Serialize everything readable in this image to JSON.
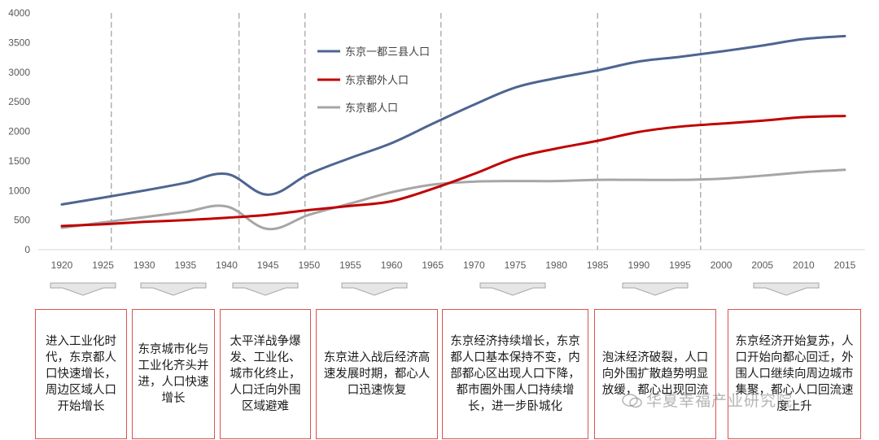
{
  "chart_data": {
    "type": "line",
    "x": [
      1920,
      1925,
      1930,
      1935,
      1940,
      1945,
      1950,
      1955,
      1960,
      1965,
      1970,
      1975,
      1980,
      1985,
      1990,
      1995,
      2000,
      2005,
      2010,
      2015
    ],
    "ylim": [
      0,
      4000
    ],
    "yticks": [
      0,
      500,
      1000,
      1500,
      2000,
      2500,
      3000,
      3500,
      4000
    ],
    "grid": false,
    "legend_position": "top-center",
    "series": [
      {
        "name": "东京一都三县人口",
        "color": "#4e6590",
        "values": [
          765,
          880,
          1000,
          1130,
          1280,
          930,
          1280,
          1550,
          1800,
          2130,
          2450,
          2740,
          2900,
          3030,
          3180,
          3260,
          3350,
          3450,
          3560,
          3610
        ]
      },
      {
        "name": "东京都外人口",
        "color": "#c00000",
        "values": [
          400,
          430,
          470,
          500,
          540,
          590,
          670,
          740,
          820,
          1030,
          1280,
          1550,
          1710,
          1840,
          1990,
          2080,
          2130,
          2180,
          2240,
          2260
        ]
      },
      {
        "name": "东京都人口",
        "color": "#a6a6a6",
        "values": [
          370,
          460,
          550,
          640,
          730,
          350,
          590,
          780,
          970,
          1100,
          1150,
          1160,
          1160,
          1180,
          1180,
          1180,
          1200,
          1250,
          1310,
          1350
        ]
      }
    ],
    "phase_dividers": [
      1926,
      1941.5,
      1949.5,
      1966,
      1985,
      1997.5
    ]
  },
  "phases": [
    {
      "text": "进入工业化时代，东京都人口快速增长，周边区域人口开始增长"
    },
    {
      "text": "东京城市化与工业化齐头并进，人口快速增长"
    },
    {
      "text": "太平洋战争爆发、工业化、城市化终止，人口迁向外围区域避难"
    },
    {
      "text": "东京进入战后经济高速发展时期，都心人口迅速恢复"
    },
    {
      "text": "东京经济持续增长，东京都人口基本保持不变，内部都心区出现人口下降，都市圈外围人口持续增长，进一步卧城化"
    },
    {
      "text": "泡沫经济破裂，人口向外围扩散趋势明显放缓，都心出现回流"
    },
    {
      "text": "东京经济开始复苏，人口开始向都心回迁，外围人口继续向周边城市集聚，都心人口回流速度上升"
    }
  ],
  "watermark": {
    "text": "华夏幸福产业研究院"
  }
}
